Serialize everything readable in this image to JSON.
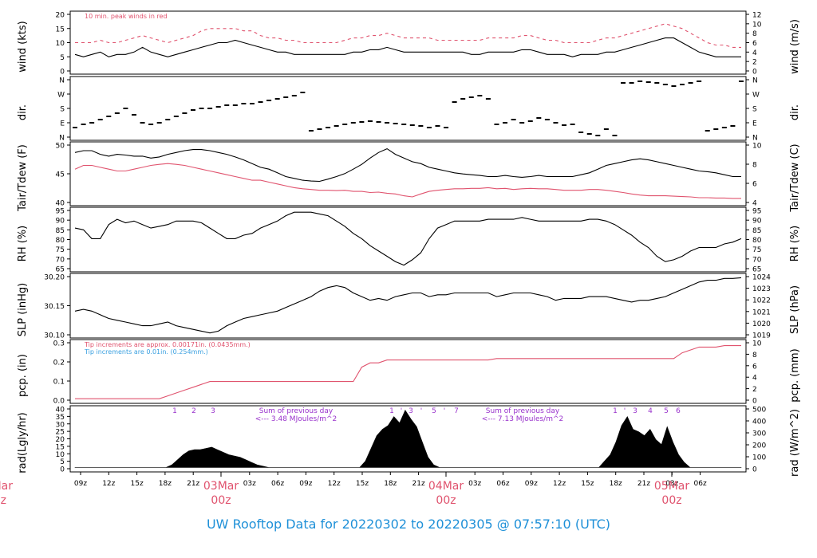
{
  "footer": {
    "title": "UW Rooftop Data for 20220302  to  20220305 @ 07:57:10  (UTC)"
  },
  "colors": {
    "black": "#000000",
    "red": "#e0536e",
    "blue": "#3aa0e0",
    "purple": "#9932cc",
    "footer": "#1e90d8"
  },
  "time_axis": {
    "hour_ticks": [
      "09z",
      "12z",
      "15z",
      "18z",
      "21z",
      "03z",
      "06z",
      "09z",
      "12z",
      "15z",
      "18z",
      "21z",
      "03z",
      "06z",
      "09z",
      "12z",
      "15z",
      "18z",
      "21z",
      "03z",
      "06z"
    ],
    "day_labels": [
      {
        "date": "03Mar",
        "hour": "00z"
      },
      {
        "date": "04Mar",
        "hour": "00z"
      },
      {
        "date": "05Mar",
        "hour": "00z"
      }
    ],
    "partial_day_label": {
      "date": "Mar",
      "hour": "z"
    }
  },
  "chart_data": [
    {
      "id": "wind",
      "type": "line",
      "ylabel_left": "wind (kts)",
      "ylabel_right": "wind (m/s)",
      "left_ticks": [
        "0",
        "5",
        "10",
        "15",
        "20"
      ],
      "right_ticks": [
        "0",
        "2",
        "4",
        "6",
        "8",
        "10",
        "12"
      ],
      "ylim": [
        0,
        24
      ],
      "annotation": "10 min. peak winds in red",
      "series": [
        {
          "role": "sustained",
          "values": [
            7,
            6,
            7,
            8,
            6,
            7,
            7,
            8,
            10,
            8,
            7,
            6,
            7,
            8,
            9,
            10,
            11,
            12,
            12,
            13,
            12,
            11,
            10,
            9,
            8,
            8,
            7,
            7,
            7,
            7,
            7,
            7,
            7,
            8,
            8,
            9,
            9,
            10,
            9,
            8,
            8,
            8,
            8,
            8,
            8,
            8,
            8,
            7,
            7,
            8,
            8,
            8,
            8,
            9,
            9,
            8,
            7,
            7,
            7,
            6,
            7,
            7,
            7,
            8,
            8,
            9,
            10,
            11,
            12,
            13,
            14,
            14,
            12,
            10,
            8,
            7,
            6,
            6,
            6,
            6
          ]
        },
        {
          "role": "peak",
          "values": [
            12,
            12,
            12,
            13,
            12,
            12,
            13,
            14,
            15,
            14,
            13,
            12,
            13,
            14,
            15,
            17,
            18,
            18,
            18,
            18,
            17,
            17,
            15,
            14,
            14,
            13,
            13,
            12,
            12,
            12,
            12,
            12,
            13,
            14,
            14,
            15,
            15,
            16,
            15,
            14,
            14,
            14,
            14,
            13,
            13,
            13,
            13,
            13,
            13,
            14,
            14,
            14,
            14,
            15,
            15,
            14,
            13,
            13,
            12,
            12,
            12,
            12,
            13,
            14,
            14,
            15,
            16,
            17,
            18,
            19,
            20,
            19,
            18,
            16,
            14,
            12,
            11,
            11,
            10,
            10
          ]
        }
      ]
    },
    {
      "id": "dir",
      "type": "scatter",
      "ylabel_left": "dir.",
      "ylabel_right": "dir.",
      "left_ticks": [
        "N",
        "E",
        "S",
        "W",
        "N"
      ],
      "right_ticks": [
        "N",
        "E",
        "S",
        "W",
        "N"
      ],
      "ylim": [
        0,
        360
      ],
      "series": [
        {
          "role": "direction_deg",
          "values": [
            60,
            80,
            90,
            110,
            130,
            150,
            180,
            140,
            90,
            80,
            90,
            110,
            130,
            150,
            170,
            180,
            180,
            190,
            200,
            200,
            210,
            210,
            220,
            230,
            240,
            250,
            260,
            280,
            40,
            50,
            60,
            70,
            80,
            90,
            95,
            100,
            95,
            90,
            85,
            80,
            75,
            70,
            60,
            70,
            60,
            220,
            240,
            250,
            260,
            240,
            80,
            90,
            110,
            90,
            100,
            120,
            110,
            90,
            75,
            80,
            30,
            20,
            10,
            50,
            10,
            340,
            340,
            350,
            345,
            340,
            330,
            320,
            330,
            340,
            350,
            40,
            50,
            60,
            70,
            350
          ]
        }
      ]
    },
    {
      "id": "temp",
      "type": "line",
      "ylabel_left": "Tair/Tdew (F)",
      "ylabel_right": "Tair/Tdew (C)",
      "left_ticks": [
        "40",
        "45",
        "50"
      ],
      "right_ticks": [
        "4",
        "6",
        "8",
        "10"
      ],
      "ylim": [
        37.5,
        53
      ],
      "series": [
        {
          "role": "Tair",
          "values": [
            51,
            51.5,
            51.5,
            50.5,
            50,
            50.5,
            50.3,
            50,
            50,
            49.5,
            49.8,
            50.5,
            51,
            51.5,
            51.8,
            51.8,
            51.5,
            51,
            50.5,
            49.8,
            49,
            48,
            47,
            46.5,
            45.5,
            44.5,
            44,
            43.5,
            43.3,
            43.2,
            43.8,
            44.5,
            45.3,
            46.5,
            47.8,
            49.5,
            51,
            52,
            50.5,
            49.5,
            48.5,
            48,
            47,
            46.5,
            46,
            45.5,
            45.2,
            45,
            44.8,
            44.5,
            44.5,
            44.8,
            44.5,
            44.3,
            44.5,
            44.8,
            44.5,
            44.5,
            44.5,
            44.5,
            45,
            45.5,
            46.5,
            47.5,
            48,
            48.5,
            49,
            49.3,
            49,
            48.5,
            48,
            47.5,
            47,
            46.5,
            46,
            45.8,
            45.5,
            45,
            44.5,
            44.5
          ]
        },
        {
          "role": "Tdew",
          "values": [
            46.5,
            47.5,
            47.5,
            47,
            46.5,
            46,
            46,
            46.5,
            47,
            47.5,
            47.8,
            48,
            47.8,
            47.5,
            47,
            46.5,
            46,
            45.5,
            45,
            44.5,
            44,
            43.5,
            43.5,
            43,
            42.5,
            42,
            41.5,
            41.2,
            41,
            40.8,
            40.8,
            40.7,
            40.8,
            40.5,
            40.5,
            40.2,
            40.3,
            40,
            39.8,
            39.3,
            39,
            39.8,
            40.5,
            40.8,
            41,
            41.2,
            41.2,
            41.3,
            41.3,
            41.5,
            41.2,
            41.3,
            41,
            41.2,
            41.3,
            41.2,
            41.2,
            41,
            40.8,
            40.8,
            40.8,
            41,
            41,
            40.8,
            40.5,
            40.2,
            39.8,
            39.5,
            39.3,
            39.3,
            39.3,
            39.2,
            39.1,
            39,
            38.8,
            38.8,
            38.7,
            38.7,
            38.6,
            38.6
          ]
        }
      ]
    },
    {
      "id": "rh",
      "type": "line",
      "ylabel_left": "RH (%)",
      "ylabel_right": "RH (%)",
      "left_ticks": [
        "65",
        "70",
        "75",
        "80",
        "85",
        "90",
        "95"
      ],
      "right_ticks": [
        "65",
        "70",
        "75",
        "80",
        "85",
        "90",
        "95"
      ],
      "ylim": [
        63,
        96
      ],
      "series": [
        {
          "role": "RH",
          "values": [
            86,
            85,
            80,
            80,
            88,
            91,
            89,
            90,
            88,
            86,
            87,
            88,
            90,
            90,
            90,
            89,
            86,
            83,
            80,
            80,
            82,
            83,
            86,
            88,
            90,
            93,
            95,
            95,
            95,
            94,
            93,
            90,
            87,
            83,
            80,
            76,
            73,
            70,
            67,
            65,
            68,
            72,
            80,
            86,
            88,
            90,
            90,
            90,
            90,
            91,
            91,
            91,
            91,
            92,
            91,
            90,
            90,
            90,
            90,
            90,
            90,
            91,
            91,
            90,
            88,
            85,
            82,
            78,
            75,
            70,
            67,
            68,
            70,
            73,
            75,
            75,
            75,
            77,
            78,
            80
          ]
        }
      ]
    },
    {
      "id": "slp",
      "type": "line",
      "ylabel_left": "SLP (inHg)",
      "ylabel_right": "SLP (hPa)",
      "left_ticks": [
        "30.10",
        "30.15",
        "30.20"
      ],
      "right_ticks": [
        "1019",
        "1020",
        "1021",
        "1022",
        "1023",
        "1024"
      ],
      "ylim": [
        30.075,
        30.235
      ],
      "series": [
        {
          "role": "SLP",
          "values": [
            30.14,
            30.145,
            30.14,
            30.13,
            30.12,
            30.115,
            30.11,
            30.105,
            30.1,
            30.1,
            30.105,
            30.11,
            30.1,
            30.095,
            30.09,
            30.085,
            30.08,
            30.085,
            30.1,
            30.11,
            30.12,
            30.125,
            30.13,
            30.135,
            30.14,
            30.15,
            30.16,
            30.17,
            30.18,
            30.195,
            30.205,
            30.21,
            30.205,
            30.19,
            30.18,
            30.17,
            30.175,
            30.17,
            30.18,
            30.185,
            30.19,
            30.19,
            30.18,
            30.185,
            30.185,
            30.19,
            30.19,
            30.19,
            30.19,
            30.19,
            30.18,
            30.185,
            30.19,
            30.19,
            30.19,
            30.185,
            30.18,
            30.17,
            30.175,
            30.175,
            30.175,
            30.18,
            30.18,
            30.18,
            30.175,
            30.17,
            30.165,
            30.17,
            30.17,
            30.175,
            30.18,
            30.19,
            30.2,
            30.21,
            30.22,
            30.225,
            30.225,
            30.23,
            30.23,
            30.232
          ]
        }
      ]
    },
    {
      "id": "pcp",
      "type": "line",
      "ylabel_left": "pcp. (in)",
      "ylabel_right": "pcp. (mm)",
      "left_ticks": [
        "0.0",
        "0.1",
        "0.2",
        "0.3"
      ],
      "right_ticks": [
        "0",
        "2",
        "4",
        "6",
        "8",
        "10"
      ],
      "ylim": [
        -0.01,
        0.39
      ],
      "annotations": [
        "Tip increments are approx. 0.00171in. (0.0435mm.)",
        "Tip increments are 0.01in. (0.254mm.)"
      ],
      "series": [
        {
          "role": "cumulative_in",
          "values": [
            0,
            0,
            0,
            0,
            0,
            0,
            0,
            0,
            0,
            0,
            0,
            0.02,
            0.04,
            0.06,
            0.08,
            0.1,
            0.12,
            0.12,
            0.12,
            0.12,
            0.12,
            0.12,
            0.12,
            0.12,
            0.12,
            0.12,
            0.12,
            0.12,
            0.12,
            0.12,
            0.12,
            0.12,
            0.12,
            0.12,
            0.22,
            0.25,
            0.25,
            0.27,
            0.27,
            0.27,
            0.27,
            0.27,
            0.27,
            0.27,
            0.27,
            0.27,
            0.27,
            0.27,
            0.27,
            0.27,
            0.28,
            0.28,
            0.28,
            0.28,
            0.28,
            0.28,
            0.28,
            0.28,
            0.28,
            0.28,
            0.28,
            0.28,
            0.28,
            0.28,
            0.28,
            0.28,
            0.28,
            0.28,
            0.28,
            0.28,
            0.28,
            0.28,
            0.32,
            0.34,
            0.36,
            0.36,
            0.36,
            0.37,
            0.37,
            0.37
          ]
        }
      ]
    },
    {
      "id": "rad",
      "type": "area",
      "ylabel_left": "rad(Lgly/hr)",
      "ylabel_right": "rad (W/m^2)",
      "left_ticks": [
        "0",
        "5",
        "10",
        "15",
        "20",
        "25",
        "30",
        "35",
        "40"
      ],
      "right_ticks": [
        "0",
        "100",
        "200",
        "300",
        "400",
        "500"
      ],
      "ylim": [
        -1,
        46
      ],
      "day_markers": [
        [
          "1",
          "2",
          "3"
        ],
        [
          "1",
          "'",
          "3",
          "'",
          "5",
          "'",
          "7"
        ],
        [
          "1",
          "'",
          "3",
          "4",
          "5",
          "6"
        ]
      ],
      "annotations": [
        {
          "text": "Sum of previous day",
          "value": "<--- 3.48 MJoules/m^2"
        },
        {
          "text": "Sum of previous day",
          "value": "<--- 7.13 MJoules/m^2"
        }
      ],
      "series": [
        {
          "role": "radiation",
          "values": [
            0,
            0,
            0,
            0,
            0,
            0,
            0,
            0,
            0,
            0,
            0,
            0,
            0,
            0,
            0,
            0,
            0,
            2,
            6,
            10,
            13,
            14,
            14,
            15,
            16,
            14,
            12,
            10,
            9,
            8,
            6,
            4,
            2,
            1,
            0,
            0,
            0,
            0,
            0,
            0,
            0,
            0,
            0,
            0,
            0,
            0,
            0,
            0,
            0,
            0,
            0,
            5,
            15,
            25,
            30,
            33,
            40,
            35,
            45,
            38,
            32,
            20,
            8,
            2,
            0,
            0,
            0,
            0,
            0,
            0,
            0,
            0,
            0,
            0,
            0,
            0,
            0,
            0,
            0,
            0,
            0,
            0,
            0,
            0,
            0,
            0,
            0,
            0,
            0,
            0,
            0,
            0,
            0,
            5,
            10,
            20,
            33,
            40,
            30,
            28,
            25,
            30,
            22,
            18,
            32,
            20,
            10,
            4,
            0,
            0,
            0,
            0,
            0,
            0,
            0,
            0,
            0,
            0
          ]
        }
      ]
    }
  ]
}
